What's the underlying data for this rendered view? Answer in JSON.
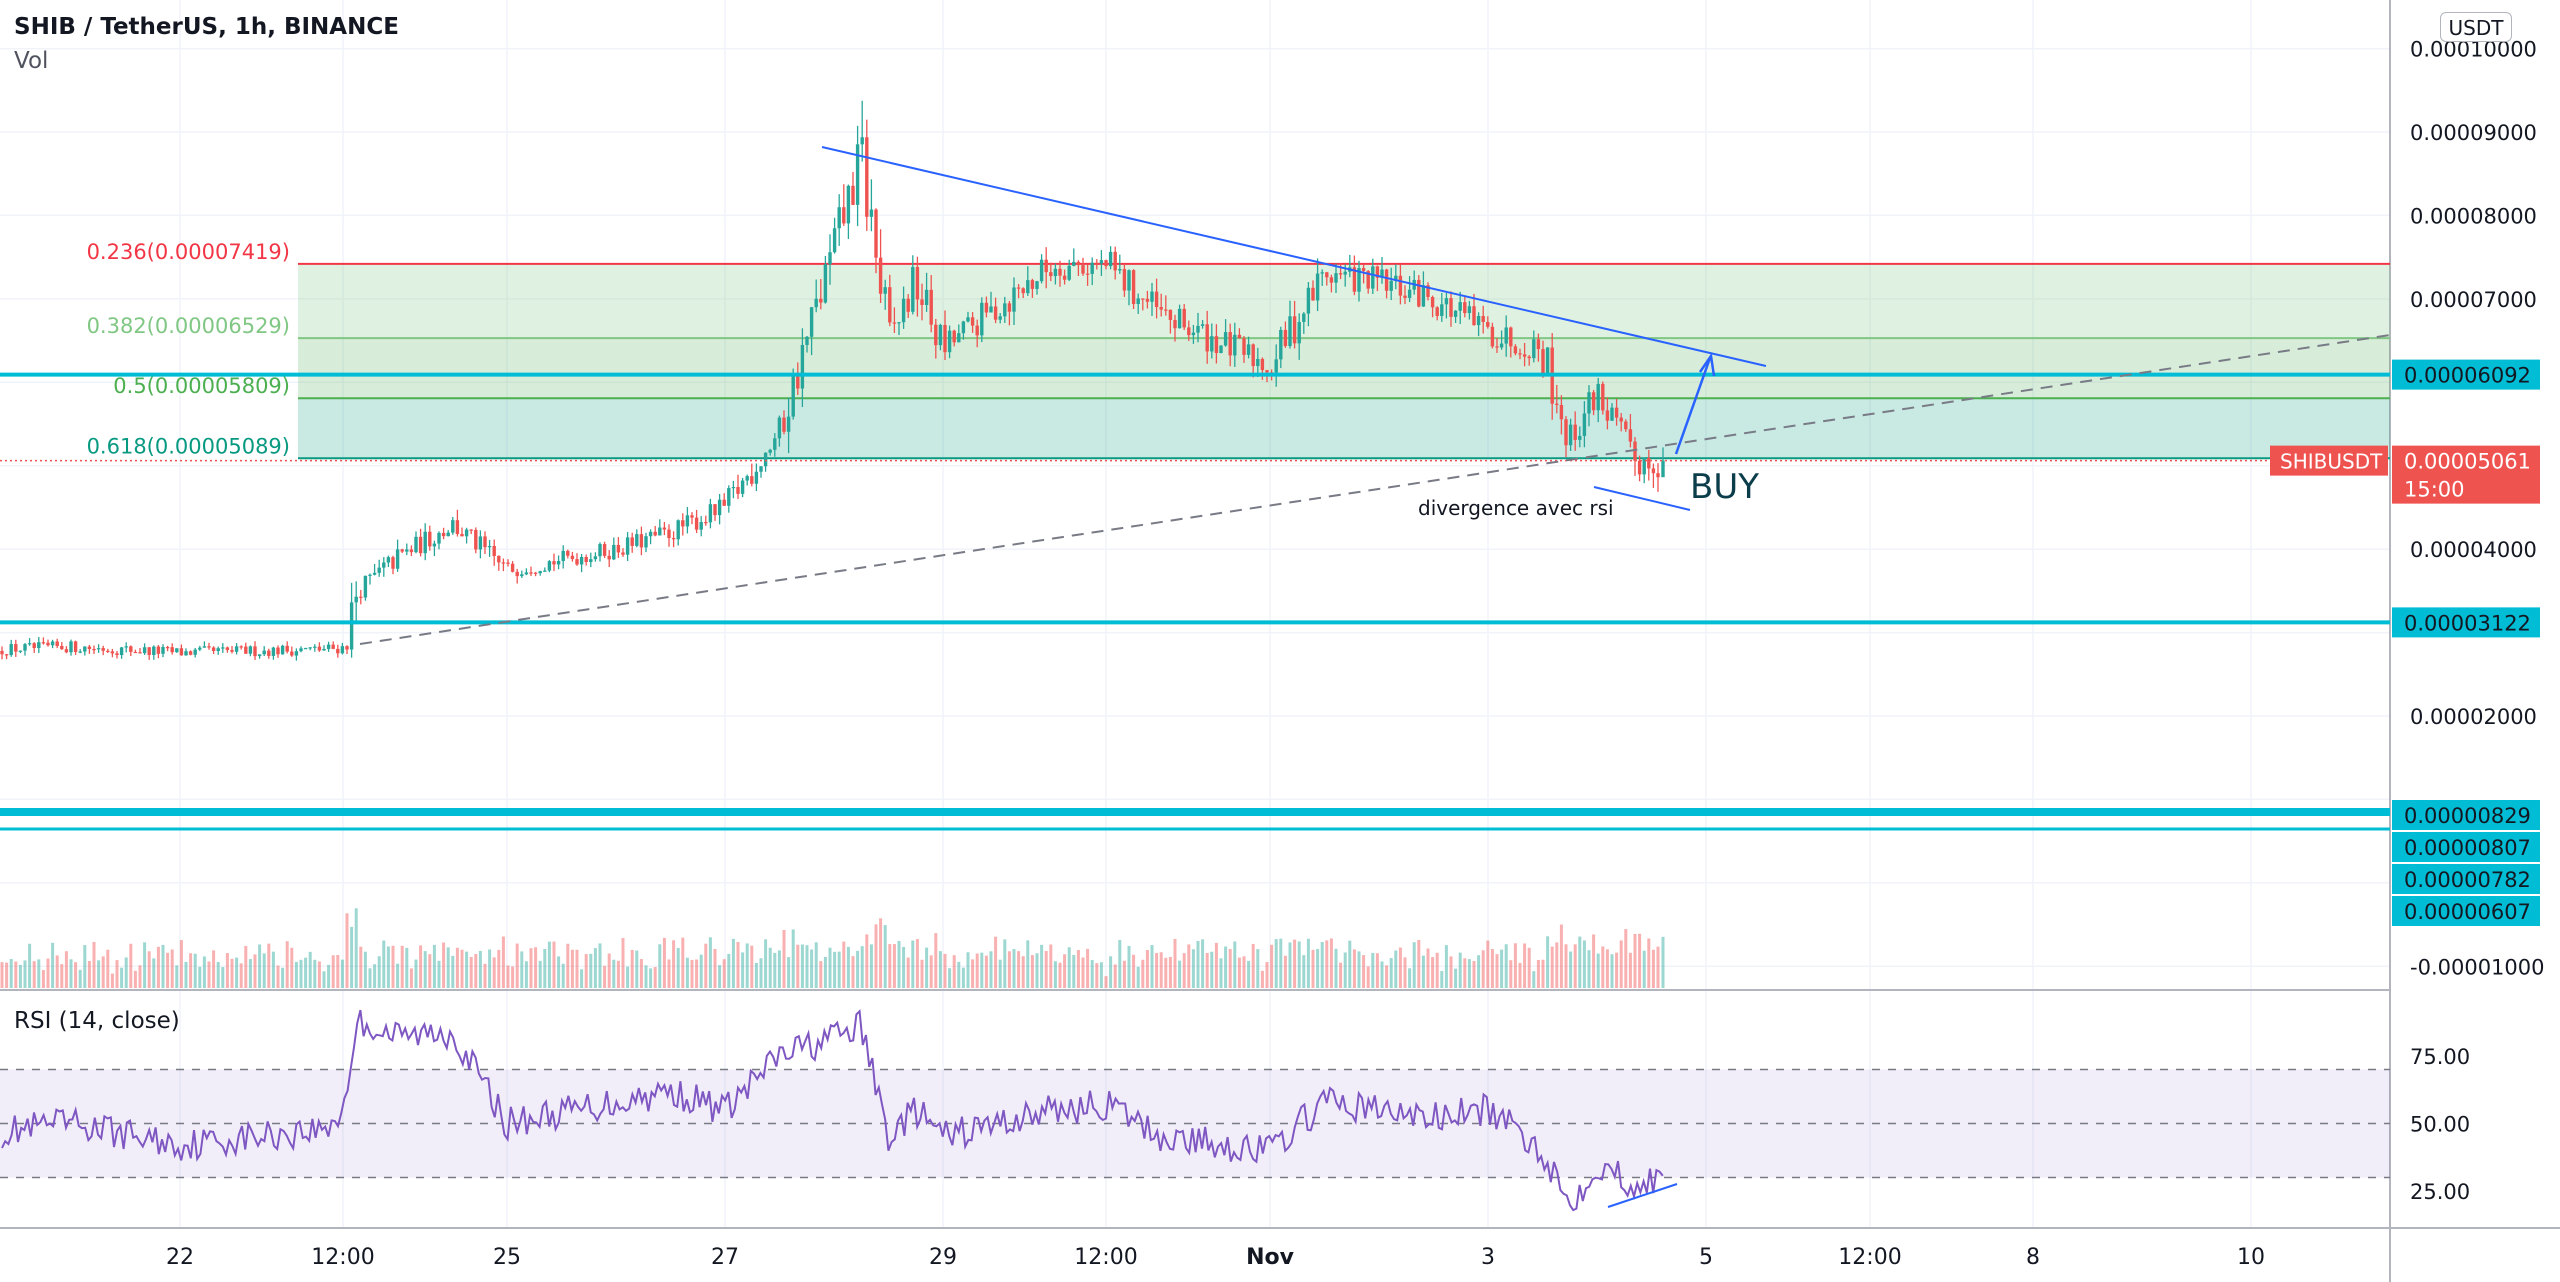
{
  "header": {
    "title": "SHIB / TetherUS, 1h, BINANCE",
    "volume_label": "Vol",
    "currency_button": "USDT"
  },
  "rsi_panel": {
    "title": "RSI (14, close)"
  },
  "colors": {
    "up": "#26a69a",
    "down": "#ef5350",
    "accent": "#00bcd4",
    "trendline": "#2962ff",
    "rsi": "#7e57c2",
    "fib_red": "#f23645",
    "fib_green": "#81c784",
    "fib_dark_green": "#4caf50",
    "fib_teal": "#089981"
  },
  "chart_data": [
    {
      "type": "candlestick",
      "symbol": "SHIBUSDT",
      "timeframe": "1h",
      "exchange": "BINANCE",
      "x_tick_labels": [
        "22",
        "12:00",
        "25",
        "27",
        "29",
        "12:00",
        "Nov",
        "3",
        "5",
        "12:00",
        "8",
        "10"
      ],
      "y_tick_labels": [
        "0.00010000",
        "0.00009000",
        "0.00008000",
        "0.00007000",
        "0.00004000",
        "0.00002000",
        "-0.00001000"
      ],
      "ylim": [
        -1e-05,
        0.0001
      ],
      "ohlc_path": [
        {
          "date": "Oct 20",
          "close": 2.78e-05
        },
        {
          "date": "Oct 21",
          "close": 2.83e-05
        },
        {
          "date": "Oct 22",
          "close": 2.76e-05
        },
        {
          "date": "Oct 23 08:00",
          "close": 2.8e-05
        },
        {
          "date": "Oct 23 12:00",
          "close": 2.82e-05
        },
        {
          "date": "Oct 23 15:00",
          "close": 3.5e-05
        },
        {
          "date": "Oct 24",
          "close": 3.9e-05
        },
        {
          "date": "Oct 24 12:00",
          "close": 4.3e-05
        },
        {
          "date": "Oct 25",
          "close": 3.75e-05
        },
        {
          "date": "Oct 26",
          "close": 4e-05
        },
        {
          "date": "Oct 26 12:00",
          "close": 4.2e-05
        },
        {
          "date": "Oct 27",
          "close": 4.5e-05
        },
        {
          "date": "Oct 27 12:00",
          "close": 5.4e-05
        },
        {
          "date": "Oct 28 00:00",
          "close": 7.6e-05
        },
        {
          "date": "Oct 28 06:00",
          "close": 8.7e-05
        },
        {
          "date": "Oct 28 12:00",
          "close": 6.5e-05
        },
        {
          "date": "Oct 28 18:00",
          "close": 7.2e-05
        },
        {
          "date": "Oct 29",
          "close": 6.4e-05
        },
        {
          "date": "Oct 30",
          "close": 7.4e-05
        },
        {
          "date": "Oct 30 12:00",
          "close": 7.4e-05
        },
        {
          "date": "Oct 31",
          "close": 6.8e-05
        },
        {
          "date": "Nov 1",
          "close": 6.2e-05
        },
        {
          "date": "Nov 1 12:00",
          "close": 7.3e-05
        },
        {
          "date": "Nov 2",
          "close": 7.2e-05
        },
        {
          "date": "Nov 2 12:00",
          "close": 7e-05
        },
        {
          "date": "Nov 3",
          "close": 6.6e-05
        },
        {
          "date": "Nov 3 12:00",
          "close": 6.4e-05
        },
        {
          "date": "Nov 3 18:00",
          "close": 5.3e-05
        },
        {
          "date": "Nov 4 00:00",
          "close": 5.9e-05
        },
        {
          "date": "Nov 4 08:00",
          "close": 5.06e-05
        }
      ],
      "last_price": "0.00005061",
      "last_price_countdown": "15:00",
      "price_lines": [
        "0.00006092",
        "0.00003122",
        "0.00000829",
        "0.00000807",
        "0.00000782",
        "0.00000607"
      ],
      "fibonacci": [
        {
          "label": "0.236(0.00007419)",
          "level": 7.419e-05
        },
        {
          "label": "0.382(0.00006529)",
          "level": 6.529e-05
        },
        {
          "label": "0.5(0.00005809)",
          "level": 5.809e-05
        },
        {
          "label": "0.618(0.00005089)",
          "level": 5.089e-05
        }
      ],
      "annotations": [
        "BUY",
        "divergence avec rsi"
      ]
    },
    {
      "type": "line",
      "name": "RSI (14, close)",
      "y_tick_labels": [
        "75.00",
        "50.00",
        "25.00"
      ],
      "ylim": [
        0,
        100
      ],
      "band": [
        30,
        70
      ],
      "rsi_path": [
        {
          "date": "Oct 20",
          "value": 45
        },
        {
          "date": "Oct 21",
          "value": 50
        },
        {
          "date": "Oct 22",
          "value": 42
        },
        {
          "date": "Oct 23 08:00",
          "value": 48
        },
        {
          "date": "Oct 23 12:00",
          "value": 55
        },
        {
          "date": "Oct 23 15:00",
          "value": 88
        },
        {
          "date": "Oct 24",
          "value": 82
        },
        {
          "date": "Oct 24 12:00",
          "value": 84
        },
        {
          "date": "Oct 25",
          "value": 50
        },
        {
          "date": "Oct 26",
          "value": 58
        },
        {
          "date": "Oct 26 12:00",
          "value": 62
        },
        {
          "date": "Oct 27",
          "value": 55
        },
        {
          "date": "Oct 27 12:00",
          "value": 75
        },
        {
          "date": "Oct 28 00:00",
          "value": 82
        },
        {
          "date": "Oct 28 06:00",
          "value": 86
        },
        {
          "date": "Oct 28 12:00",
          "value": 45
        },
        {
          "date": "Oct 28 18:00",
          "value": 55
        },
        {
          "date": "Oct 29",
          "value": 45
        },
        {
          "date": "Oct 30",
          "value": 55
        },
        {
          "date": "Oct 30 12:00",
          "value": 57
        },
        {
          "date": "Oct 31",
          "value": 45
        },
        {
          "date": "Nov 1",
          "value": 40
        },
        {
          "date": "Nov 1 12:00",
          "value": 58
        },
        {
          "date": "Nov 2",
          "value": 55
        },
        {
          "date": "Nov 2 12:00",
          "value": 52
        },
        {
          "date": "Nov 3",
          "value": 55
        },
        {
          "date": "Nov 3 12:00",
          "value": 40
        },
        {
          "date": "Nov 3 18:00",
          "value": 20
        },
        {
          "date": "Nov 4 00:00",
          "value": 35
        },
        {
          "date": "Nov 4 08:00",
          "value": 28
        }
      ]
    }
  ]
}
